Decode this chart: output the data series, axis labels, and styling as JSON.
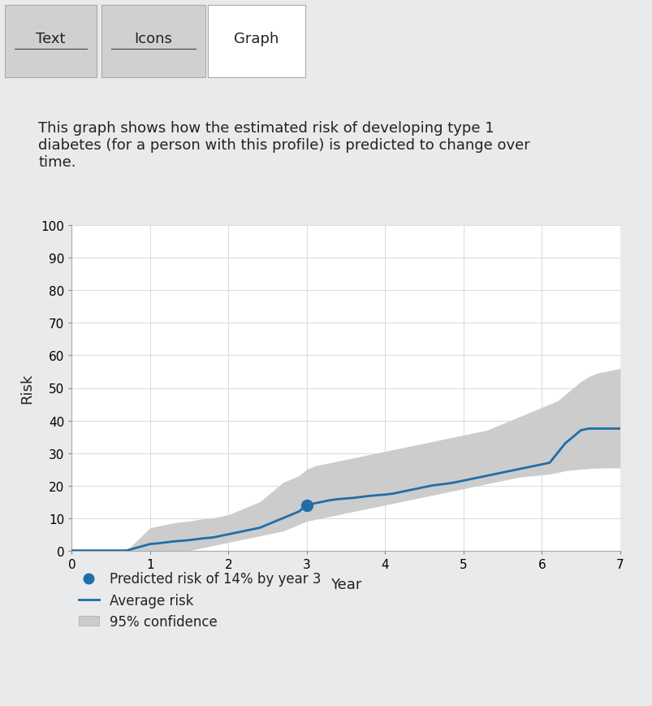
{
  "background_color": "#e8eaec",
  "panel_bg": "#ffffff",
  "tab_labels": [
    "Text",
    "Icons",
    "Graph"
  ],
  "description": "This graph shows how the estimated risk of developing type 1\ndiabetes (for a person with this profile) is predicted to change over\ntime.",
  "xlabel": "Year",
  "ylabel": "Risk",
  "xlim": [
    0,
    7
  ],
  "ylim": [
    0,
    100
  ],
  "xticks": [
    0,
    1,
    2,
    3,
    4,
    5,
    6,
    7
  ],
  "yticks": [
    0,
    10,
    20,
    30,
    40,
    50,
    60,
    70,
    80,
    90,
    100
  ],
  "line_color": "#1f6ea8",
  "ci_color": "#cccccc",
  "point_color": "#1f6ea8",
  "x": [
    0,
    0.4,
    0.7,
    1.0,
    1.1,
    1.2,
    1.3,
    1.4,
    1.5,
    1.6,
    1.7,
    1.8,
    1.9,
    2.0,
    2.1,
    2.2,
    2.3,
    2.4,
    2.5,
    2.6,
    2.7,
    2.8,
    2.9,
    3.0,
    3.1,
    3.2,
    3.3,
    3.4,
    3.5,
    3.6,
    3.7,
    3.8,
    3.9,
    4.0,
    4.1,
    4.2,
    4.3,
    4.4,
    4.5,
    4.6,
    4.7,
    4.8,
    4.9,
    5.0,
    5.1,
    5.2,
    5.3,
    5.4,
    5.5,
    5.6,
    5.7,
    5.8,
    5.9,
    6.0,
    6.1,
    6.2,
    6.3,
    6.4,
    6.5,
    6.6,
    6.7,
    6.8,
    6.9,
    7.0
  ],
  "y_mean": [
    0,
    0,
    0,
    2,
    2.2,
    2.5,
    2.8,
    3.0,
    3.2,
    3.5,
    3.8,
    4.0,
    4.5,
    5.0,
    5.5,
    6.0,
    6.5,
    7.0,
    8.0,
    9.0,
    10.0,
    11.0,
    12.0,
    14.0,
    14.5,
    15.0,
    15.5,
    15.8,
    16.0,
    16.2,
    16.5,
    16.8,
    17.0,
    17.2,
    17.5,
    18.0,
    18.5,
    19.0,
    19.5,
    20.0,
    20.3,
    20.6,
    21.0,
    21.5,
    22.0,
    22.5,
    23.0,
    23.5,
    24.0,
    24.5,
    25.0,
    25.5,
    26.0,
    26.5,
    27.0,
    30.0,
    33.0,
    35.0,
    37.0,
    37.5,
    37.5,
    37.5,
    37.5,
    37.5
  ],
  "y_lower": [
    0,
    0,
    0,
    0,
    0,
    0,
    0,
    0,
    0,
    0.5,
    1.0,
    1.5,
    2.0,
    2.5,
    3.0,
    3.5,
    4.0,
    4.5,
    5.0,
    5.5,
    6.0,
    7.0,
    8.0,
    9.0,
    9.5,
    10.0,
    10.5,
    11.0,
    11.5,
    12.0,
    12.5,
    13.0,
    13.5,
    14.0,
    14.5,
    15.0,
    15.5,
    16.0,
    16.5,
    17.0,
    17.5,
    18.0,
    18.5,
    19.0,
    19.5,
    20.0,
    20.5,
    21.0,
    21.5,
    22.0,
    22.5,
    22.8,
    23.0,
    23.3,
    23.5,
    24.0,
    24.5,
    24.8,
    25.0,
    25.2,
    25.3,
    25.4,
    25.4,
    25.4
  ],
  "y_upper": [
    0,
    0,
    0,
    7,
    7.5,
    8.0,
    8.5,
    8.8,
    9.0,
    9.5,
    9.8,
    10.0,
    10.5,
    11.0,
    12.0,
    13.0,
    14.0,
    15.0,
    17.0,
    19.0,
    21.0,
    22.0,
    23.0,
    25.0,
    26.0,
    26.5,
    27.0,
    27.5,
    28.0,
    28.5,
    29.0,
    29.5,
    30.0,
    30.5,
    31.0,
    31.5,
    32.0,
    32.5,
    33.0,
    33.5,
    34.0,
    34.5,
    35.0,
    35.5,
    36.0,
    36.5,
    37.0,
    38.0,
    39.0,
    40.0,
    41.0,
    42.0,
    43.0,
    44.0,
    45.0,
    46.0,
    48.0,
    50.0,
    52.0,
    53.5,
    54.5,
    55.0,
    55.5,
    56.0
  ],
  "marker_x": 3.0,
  "marker_y": 14.0,
  "legend_dot_label": "Predicted risk of 14% by year 3",
  "legend_line_label": "Average risk",
  "legend_ci_label": "95% confidence",
  "axis_label_fontsize": 13,
  "tick_fontsize": 11,
  "legend_fontsize": 12,
  "description_fontsize": 13
}
